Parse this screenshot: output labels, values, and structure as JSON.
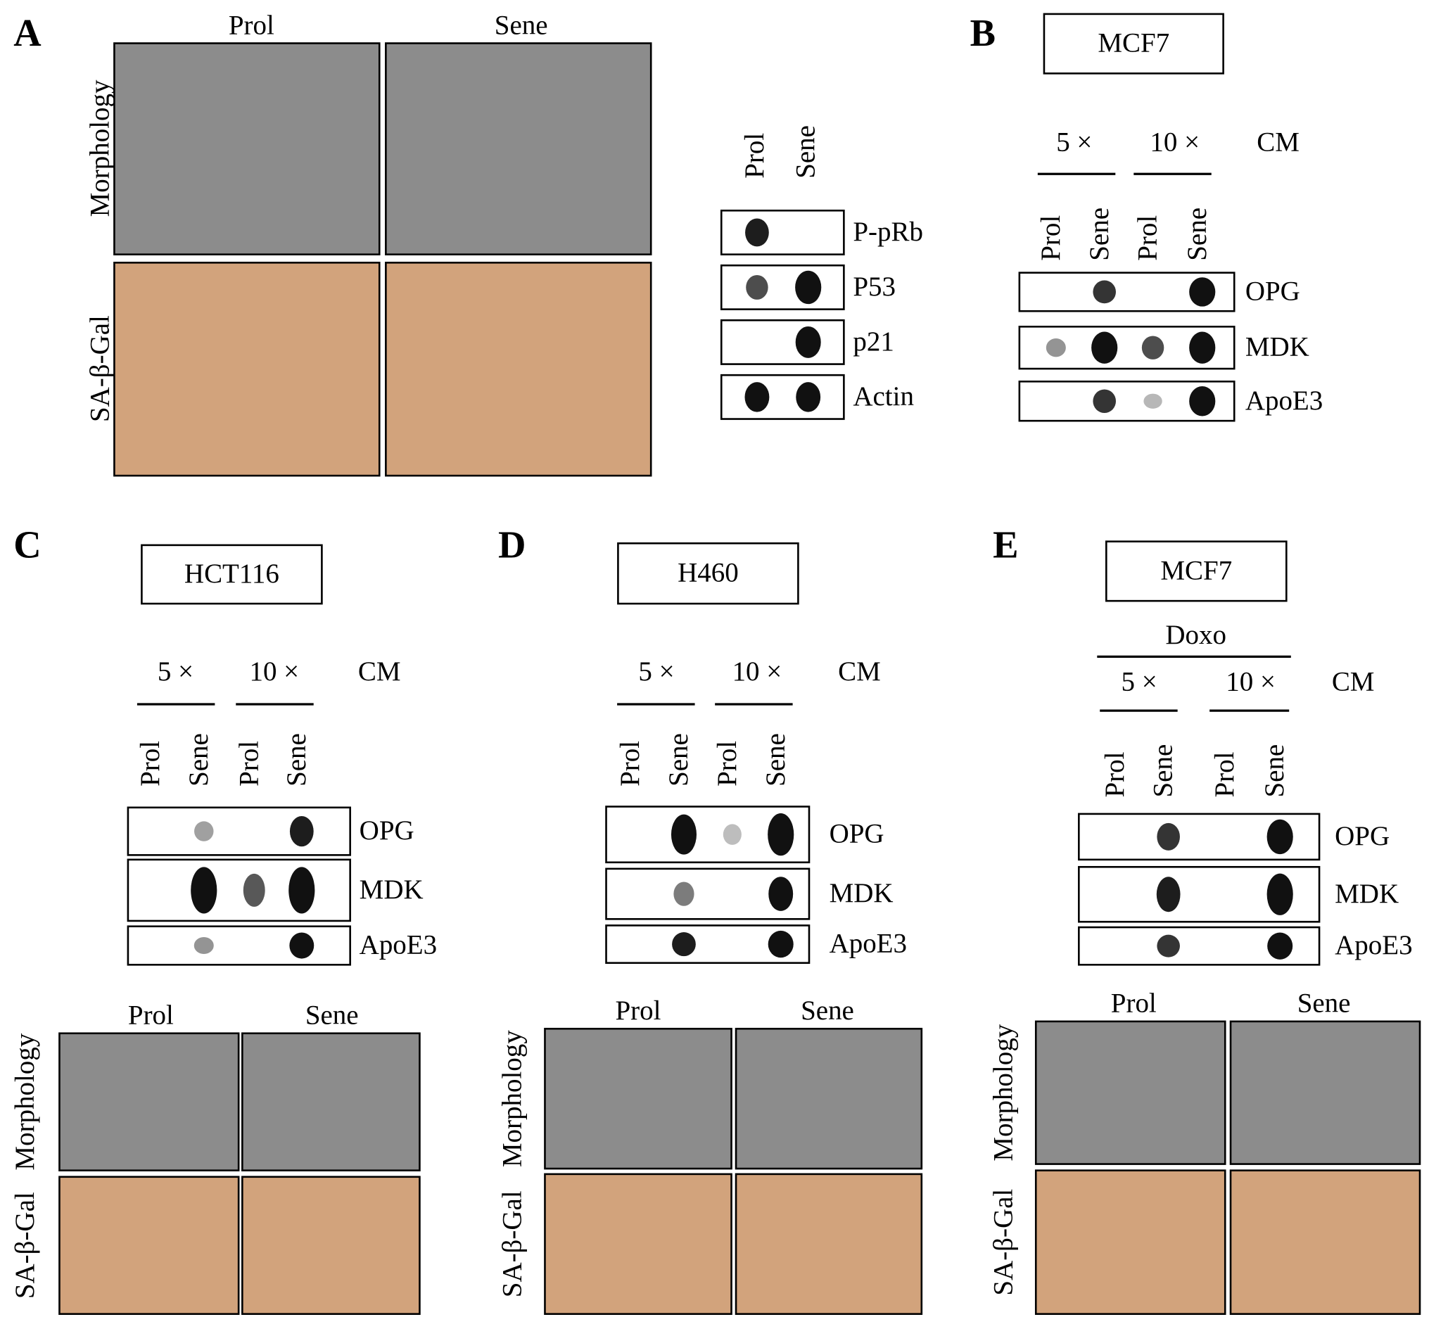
{
  "panels": [
    {
      "letter": "A",
      "columns": [
        "Prol",
        "Sene"
      ],
      "rows": [
        "Morphology",
        "SA-β-Gal"
      ],
      "lanes": [
        "Prol",
        "Sene"
      ],
      "blots": [
        "P-pRb",
        "P53",
        "p21",
        "Actin"
      ]
    },
    {
      "letter": "B",
      "cell_line": "MCF7",
      "doses": [
        "5 ×",
        "10 ×"
      ],
      "medium": "CM",
      "lanes": [
        "Prol",
        "Sene",
        "Prol",
        "Sene"
      ],
      "blots": [
        "OPG",
        "MDK",
        "ApoE3"
      ]
    },
    {
      "letter": "C",
      "cell_line": "HCT116",
      "doses": [
        "5 ×",
        "10 ×"
      ],
      "medium": "CM",
      "lanes": [
        "Prol",
        "Sene",
        "Prol",
        "Sene"
      ],
      "blots": [
        "OPG",
        "MDK",
        "ApoE3"
      ],
      "columns": [
        "Prol",
        "Sene"
      ],
      "rows": [
        "Morphology",
        "SA-β-Gal"
      ]
    },
    {
      "letter": "D",
      "cell_line": "H460",
      "doses": [
        "5 ×",
        "10 ×"
      ],
      "medium": "CM",
      "lanes": [
        "Prol",
        "Sene",
        "Prol",
        "Sene"
      ],
      "blots": [
        "OPG",
        "MDK",
        "ApoE3"
      ],
      "columns": [
        "Prol",
        "Sene"
      ],
      "rows": [
        "Morphology",
        "SA-β-Gal"
      ]
    },
    {
      "letter": "E",
      "cell_line": "MCF7",
      "treatment": "Doxo",
      "doses": [
        "5 ×",
        "10 ×"
      ],
      "medium": "CM",
      "lanes": [
        "Prol",
        "Sene",
        "Prol",
        "Sene"
      ],
      "blots": [
        "OPG",
        "MDK",
        "ApoE3"
      ],
      "columns": [
        "Prol",
        "Sene"
      ],
      "rows": [
        "Morphology",
        "SA-β-Gal"
      ]
    }
  ]
}
